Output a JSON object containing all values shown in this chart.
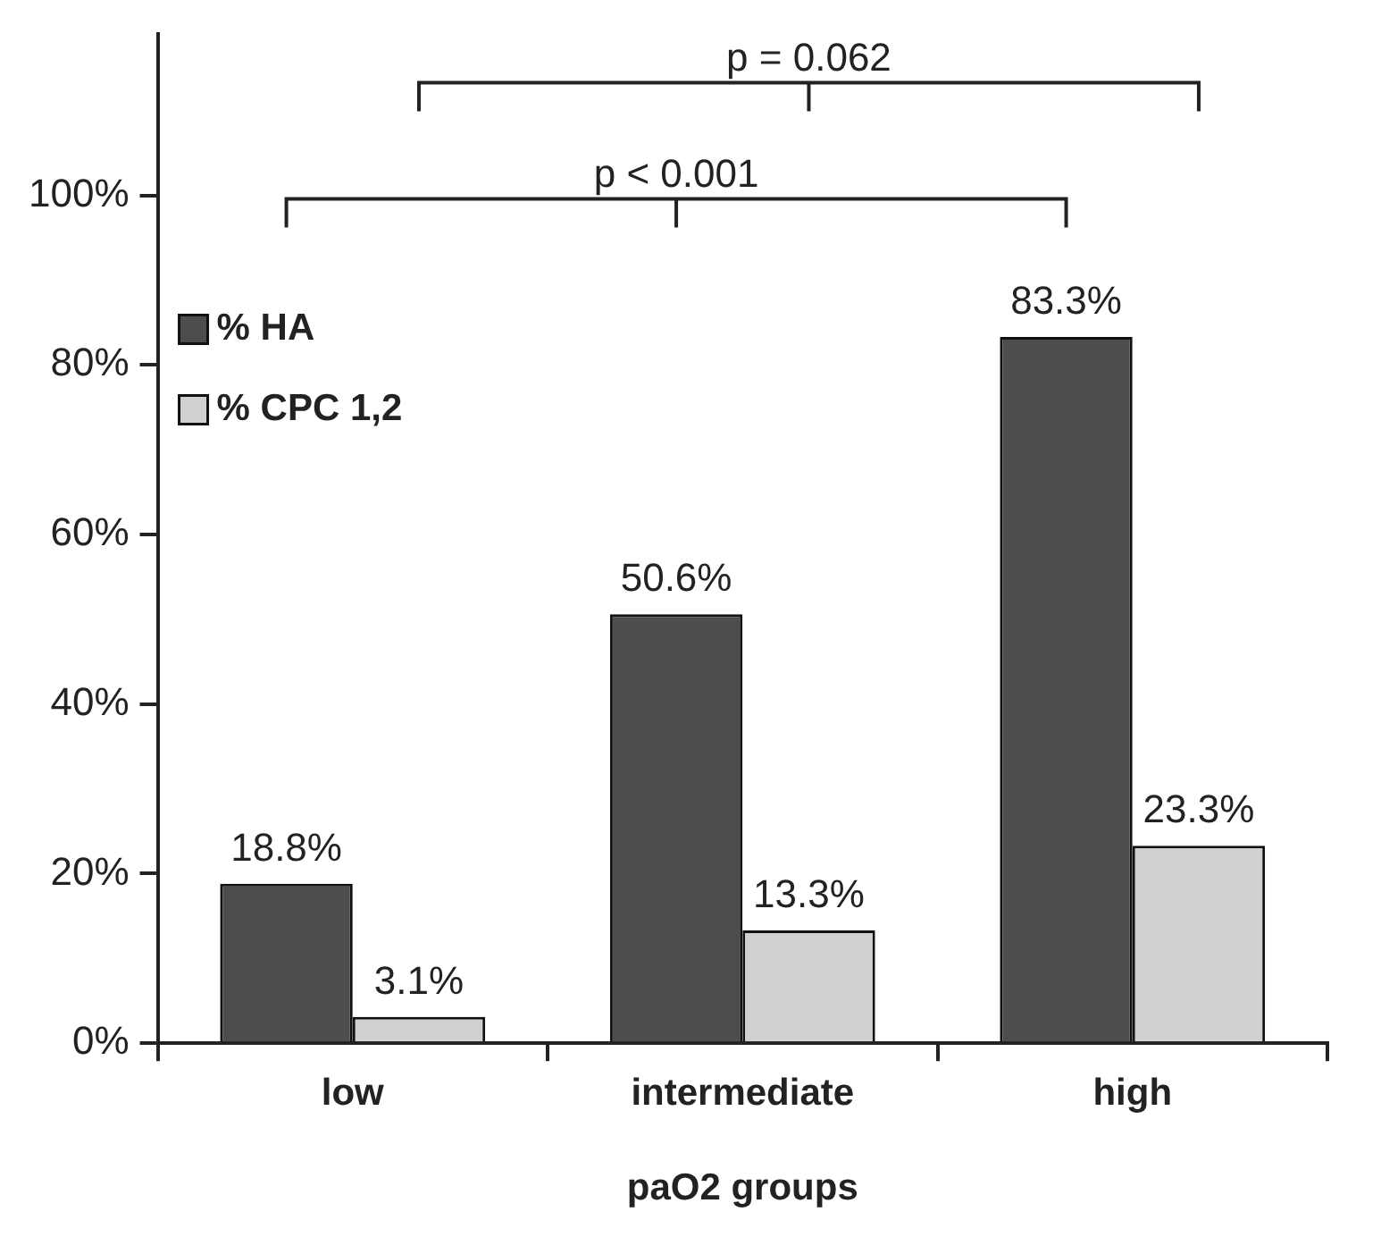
{
  "chart_data": {
    "type": "bar",
    "xlabel": "paO2 groups",
    "categories": [
      "low",
      "intermediate",
      "high"
    ],
    "series": [
      {
        "name": "% HA",
        "color": "#4d4d4d",
        "values": [
          18.8,
          50.6,
          83.3
        ],
        "value_labels": [
          "18.8%",
          "50.6%",
          "83.3%"
        ]
      },
      {
        "name": "% CPC 1,2",
        "color": "#d0d0d0",
        "values": [
          3.1,
          13.3,
          23.3
        ],
        "value_labels": [
          "3.1%",
          "13.3%",
          "23.3%"
        ]
      }
    ],
    "ylim": [
      0,
      119
    ],
    "yticks": [
      {
        "value": 0,
        "label": "0%"
      },
      {
        "value": 20,
        "label": "20%"
      },
      {
        "value": 40,
        "label": "40%"
      },
      {
        "value": 60,
        "label": "60%"
      },
      {
        "value": 80,
        "label": "80%"
      },
      {
        "value": 100,
        "label": "100%"
      }
    ],
    "annotations": [
      "p < 0.001",
      "p = 0.062"
    ],
    "legend": "top left",
    "grid": false
  }
}
